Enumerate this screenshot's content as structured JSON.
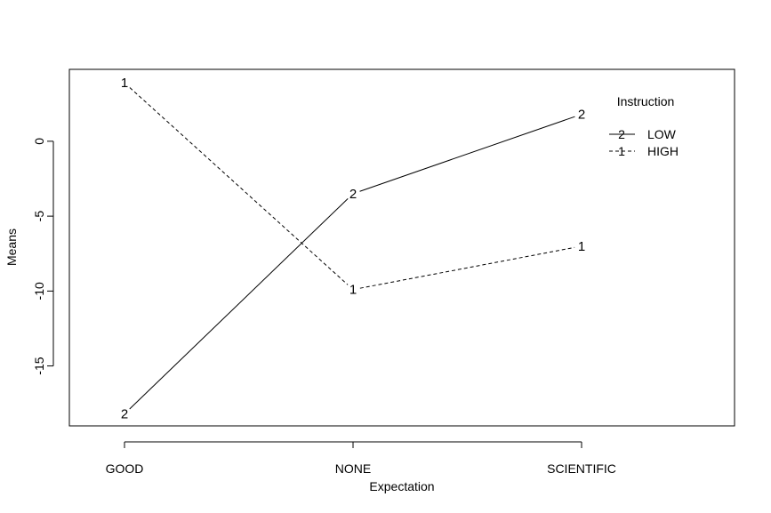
{
  "chart_data": {
    "type": "line",
    "title": "",
    "xlabel": "Expectation",
    "ylabel": "Means",
    "categories": [
      "GOOD",
      "NONE",
      "SCIENTIFIC"
    ],
    "yticks": [
      "-15",
      "-10",
      "-5",
      "0"
    ],
    "ylim": [
      -19,
      4.8
    ],
    "grid": false,
    "legend": {
      "title": "Instruction",
      "placement": "top-right"
    },
    "series": [
      {
        "name": "LOW",
        "marker": "2",
        "linestyle": "solid",
        "values": [
          -18.2,
          -3.5,
          1.8
        ]
      },
      {
        "name": "HIGH",
        "marker": "1",
        "linestyle": "dashed",
        "values": [
          3.9,
          -9.9,
          -7.0
        ]
      }
    ]
  }
}
